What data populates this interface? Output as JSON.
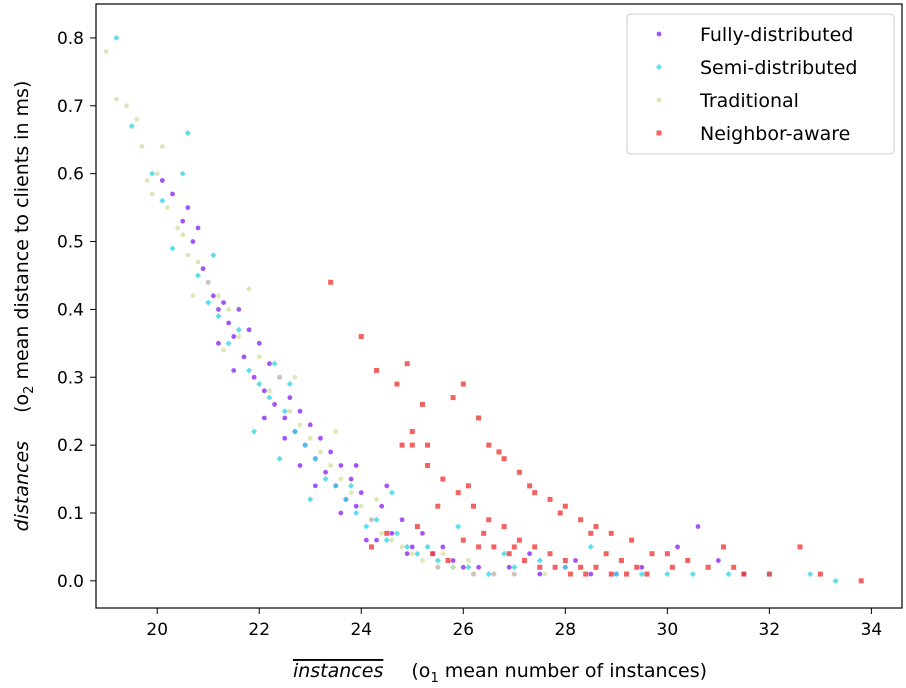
{
  "chart_data": {
    "type": "scatter",
    "xlabel": {
      "main": "instances",
      "note_prefix": "(o",
      "note_sub": "1",
      "note_rest": " mean number of instances)"
    },
    "ylabel": {
      "main": "distances",
      "note_prefix": "(o",
      "note_sub": "2",
      "note_rest": " mean distance to clients in ms)"
    },
    "xlim": [
      18.8,
      34.6
    ],
    "ylim": [
      -0.04,
      0.85
    ],
    "xticks": [
      20,
      22,
      24,
      26,
      28,
      30,
      32,
      34
    ],
    "xtick_labels": [
      "20",
      "22",
      "24",
      "26",
      "28",
      "30",
      "32",
      "34"
    ],
    "yticks": [
      0.0,
      0.1,
      0.2,
      0.3,
      0.4,
      0.5,
      0.6,
      0.7,
      0.8
    ],
    "ytick_labels": [
      "0.0",
      "0.1",
      "0.2",
      "0.3",
      "0.4",
      "0.5",
      "0.6",
      "0.7",
      "0.8"
    ],
    "grid": false,
    "legend_position": "top-right",
    "series": [
      {
        "name": "Fully-distributed",
        "color": "#8b2bf5",
        "marker": "circle",
        "points": [
          [
            20.1,
            0.59
          ],
          [
            20.3,
            0.57
          ],
          [
            20.5,
            0.53
          ],
          [
            20.6,
            0.55
          ],
          [
            20.7,
            0.5
          ],
          [
            20.8,
            0.52
          ],
          [
            20.9,
            0.46
          ],
          [
            21.0,
            0.44
          ],
          [
            21.1,
            0.42
          ],
          [
            21.2,
            0.4
          ],
          [
            21.3,
            0.41
          ],
          [
            21.4,
            0.38
          ],
          [
            21.5,
            0.36
          ],
          [
            21.6,
            0.4
          ],
          [
            21.7,
            0.33
          ],
          [
            21.8,
            0.37
          ],
          [
            21.9,
            0.3
          ],
          [
            22.0,
            0.35
          ],
          [
            22.1,
            0.28
          ],
          [
            22.2,
            0.32
          ],
          [
            22.3,
            0.26
          ],
          [
            22.4,
            0.3
          ],
          [
            22.5,
            0.24
          ],
          [
            22.6,
            0.27
          ],
          [
            22.7,
            0.22
          ],
          [
            22.8,
            0.25
          ],
          [
            22.9,
            0.2
          ],
          [
            23.0,
            0.23
          ],
          [
            23.1,
            0.18
          ],
          [
            23.2,
            0.21
          ],
          [
            23.3,
            0.16
          ],
          [
            23.4,
            0.19
          ],
          [
            23.5,
            0.14
          ],
          [
            23.6,
            0.17
          ],
          [
            23.7,
            0.12
          ],
          [
            23.8,
            0.15
          ],
          [
            23.9,
            0.11
          ],
          [
            24.0,
            0.13
          ],
          [
            24.2,
            0.09
          ],
          [
            24.4,
            0.11
          ],
          [
            24.6,
            0.07
          ],
          [
            24.8,
            0.09
          ],
          [
            25.0,
            0.05
          ],
          [
            25.2,
            0.07
          ],
          [
            25.4,
            0.04
          ],
          [
            25.6,
            0.05
          ],
          [
            25.8,
            0.03
          ],
          [
            26.0,
            0.02
          ],
          [
            26.3,
            0.02
          ],
          [
            26.6,
            0.01
          ],
          [
            27.0,
            0.01
          ],
          [
            27.5,
            0.01
          ],
          [
            28.0,
            0.02
          ],
          [
            28.5,
            0.01
          ],
          [
            29.0,
            0.01
          ],
          [
            29.5,
            0.02
          ],
          [
            30.2,
            0.05
          ],
          [
            30.6,
            0.08
          ],
          [
            31.0,
            0.03
          ],
          [
            31.5,
            0.01
          ],
          [
            22.1,
            0.24
          ],
          [
            22.5,
            0.21
          ],
          [
            23.1,
            0.14
          ],
          [
            23.6,
            0.1
          ],
          [
            24.3,
            0.06
          ],
          [
            21.5,
            0.31
          ],
          [
            21.2,
            0.35
          ],
          [
            24.9,
            0.04
          ],
          [
            25.5,
            0.02
          ],
          [
            26.2,
            0.01
          ],
          [
            26.9,
            0.02
          ],
          [
            27.3,
            0.04
          ],
          [
            28.2,
            0.03
          ],
          [
            23.9,
            0.17
          ],
          [
            24.5,
            0.14
          ],
          [
            24.1,
            0.06
          ],
          [
            22.8,
            0.17
          ]
        ]
      },
      {
        "name": "Semi-distributed",
        "color": "#36d4e6",
        "marker": "diamond",
        "points": [
          [
            19.2,
            0.8
          ],
          [
            19.5,
            0.67
          ],
          [
            19.9,
            0.6
          ],
          [
            20.1,
            0.56
          ],
          [
            20.3,
            0.49
          ],
          [
            20.5,
            0.6
          ],
          [
            20.6,
            0.66
          ],
          [
            20.8,
            0.45
          ],
          [
            21.0,
            0.41
          ],
          [
            21.1,
            0.48
          ],
          [
            21.2,
            0.39
          ],
          [
            21.4,
            0.35
          ],
          [
            21.6,
            0.37
          ],
          [
            21.8,
            0.31
          ],
          [
            22.0,
            0.29
          ],
          [
            22.2,
            0.27
          ],
          [
            22.3,
            0.32
          ],
          [
            22.5,
            0.25
          ],
          [
            22.7,
            0.22
          ],
          [
            22.9,
            0.2
          ],
          [
            23.1,
            0.18
          ],
          [
            23.3,
            0.15
          ],
          [
            23.5,
            0.14
          ],
          [
            23.7,
            0.12
          ],
          [
            23.9,
            0.1
          ],
          [
            24.1,
            0.08
          ],
          [
            24.3,
            0.09
          ],
          [
            24.5,
            0.06
          ],
          [
            24.7,
            0.07
          ],
          [
            24.9,
            0.05
          ],
          [
            25.1,
            0.04
          ],
          [
            25.3,
            0.05
          ],
          [
            25.5,
            0.03
          ],
          [
            25.8,
            0.02
          ],
          [
            26.1,
            0.02
          ],
          [
            26.5,
            0.01
          ],
          [
            27.0,
            0.02
          ],
          [
            27.5,
            0.03
          ],
          [
            28.0,
            0.02
          ],
          [
            28.5,
            0.05
          ],
          [
            29.0,
            0.01
          ],
          [
            29.5,
            0.01
          ],
          [
            30.0,
            0.01
          ],
          [
            30.5,
            0.01
          ],
          [
            31.2,
            0.01
          ],
          [
            32.0,
            0.01
          ],
          [
            32.8,
            0.01
          ],
          [
            33.3,
            0.0
          ],
          [
            24.6,
            0.13
          ],
          [
            25.9,
            0.08
          ],
          [
            26.8,
            0.04
          ],
          [
            21.9,
            0.22
          ],
          [
            22.4,
            0.18
          ],
          [
            23.0,
            0.12
          ],
          [
            22.6,
            0.29
          ],
          [
            23.8,
            0.14
          ]
        ]
      },
      {
        "name": "Traditional",
        "color": "#d9e0a8",
        "marker": "circle",
        "points": [
          [
            19.0,
            0.78
          ],
          [
            19.2,
            0.71
          ],
          [
            19.4,
            0.7
          ],
          [
            19.6,
            0.68
          ],
          [
            19.7,
            0.64
          ],
          [
            19.8,
            0.59
          ],
          [
            19.9,
            0.57
          ],
          [
            20.0,
            0.6
          ],
          [
            20.1,
            0.64
          ],
          [
            20.2,
            0.55
          ],
          [
            20.4,
            0.52
          ],
          [
            20.5,
            0.51
          ],
          [
            20.6,
            0.48
          ],
          [
            20.8,
            0.47
          ],
          [
            21.0,
            0.44
          ],
          [
            21.2,
            0.42
          ],
          [
            21.4,
            0.4
          ],
          [
            21.6,
            0.36
          ],
          [
            21.8,
            0.43
          ],
          [
            22.0,
            0.33
          ],
          [
            22.2,
            0.28
          ],
          [
            22.4,
            0.3
          ],
          [
            22.6,
            0.25
          ],
          [
            22.8,
            0.23
          ],
          [
            23.0,
            0.21
          ],
          [
            23.2,
            0.19
          ],
          [
            23.4,
            0.17
          ],
          [
            23.6,
            0.15
          ],
          [
            23.8,
            0.13
          ],
          [
            24.0,
            0.11
          ],
          [
            24.2,
            0.09
          ],
          [
            24.4,
            0.07
          ],
          [
            24.6,
            0.06
          ],
          [
            24.8,
            0.05
          ],
          [
            25.0,
            0.04
          ],
          [
            25.2,
            0.03
          ],
          [
            25.5,
            0.02
          ],
          [
            25.8,
            0.02
          ],
          [
            26.2,
            0.01
          ],
          [
            26.6,
            0.01
          ],
          [
            27.0,
            0.01
          ],
          [
            27.6,
            0.01
          ],
          [
            22.7,
            0.3
          ],
          [
            23.5,
            0.22
          ],
          [
            24.3,
            0.12
          ],
          [
            21.3,
            0.34
          ],
          [
            20.7,
            0.42
          ],
          [
            25.6,
            0.04
          ],
          [
            26.1,
            0.03
          ]
        ]
      },
      {
        "name": "Neighbor-aware",
        "color": "#f03a3a",
        "marker": "square",
        "points": [
          [
            23.4,
            0.44
          ],
          [
            24.0,
            0.36
          ],
          [
            24.3,
            0.31
          ],
          [
            24.7,
            0.29
          ],
          [
            24.9,
            0.32
          ],
          [
            25.2,
            0.26
          ],
          [
            25.8,
            0.27
          ],
          [
            26.0,
            0.29
          ],
          [
            26.3,
            0.24
          ],
          [
            26.5,
            0.2
          ],
          [
            26.8,
            0.18
          ],
          [
            27.1,
            0.16
          ],
          [
            27.4,
            0.13
          ],
          [
            27.7,
            0.12
          ],
          [
            28.0,
            0.11
          ],
          [
            28.3,
            0.09
          ],
          [
            28.6,
            0.08
          ],
          [
            28.9,
            0.07
          ],
          [
            29.3,
            0.06
          ],
          [
            29.7,
            0.04
          ],
          [
            30.0,
            0.04
          ],
          [
            30.4,
            0.03
          ],
          [
            30.8,
            0.02
          ],
          [
            31.1,
            0.05
          ],
          [
            31.5,
            0.01
          ],
          [
            32.0,
            0.01
          ],
          [
            32.6,
            0.05
          ],
          [
            33.0,
            0.01
          ],
          [
            33.8,
            0.0
          ],
          [
            24.8,
            0.2
          ],
          [
            25.0,
            0.22
          ],
          [
            25.3,
            0.17
          ],
          [
            25.6,
            0.15
          ],
          [
            25.9,
            0.13
          ],
          [
            26.2,
            0.11
          ],
          [
            26.5,
            0.09
          ],
          [
            26.8,
            0.08
          ],
          [
            27.1,
            0.06
          ],
          [
            27.4,
            0.05
          ],
          [
            27.7,
            0.04
          ],
          [
            28.0,
            0.03
          ],
          [
            28.3,
            0.02
          ],
          [
            28.6,
            0.02
          ],
          [
            28.9,
            0.01
          ],
          [
            29.2,
            0.01
          ],
          [
            29.6,
            0.01
          ],
          [
            25.4,
            0.04
          ],
          [
            25.7,
            0.03
          ],
          [
            26.0,
            0.06
          ],
          [
            26.3,
            0.05
          ],
          [
            26.6,
            0.05
          ],
          [
            26.9,
            0.04
          ],
          [
            27.2,
            0.03
          ],
          [
            27.5,
            0.02
          ],
          [
            27.8,
            0.02
          ],
          [
            28.1,
            0.01
          ],
          [
            28.4,
            0.01
          ],
          [
            25.1,
            0.08
          ],
          [
            25.5,
            0.11
          ],
          [
            26.1,
            0.14
          ],
          [
            26.7,
            0.19
          ],
          [
            27.3,
            0.14
          ],
          [
            27.9,
            0.1
          ],
          [
            28.5,
            0.07
          ],
          [
            29.1,
            0.03
          ],
          [
            24.5,
            0.07
          ],
          [
            24.2,
            0.05
          ],
          [
            25.0,
            0.2
          ],
          [
            25.3,
            0.2
          ],
          [
            26.4,
            0.07
          ],
          [
            27.0,
            0.05
          ],
          [
            28.8,
            0.04
          ],
          [
            29.4,
            0.02
          ],
          [
            30.1,
            0.02
          ],
          [
            31.3,
            0.02
          ]
        ]
      }
    ]
  }
}
